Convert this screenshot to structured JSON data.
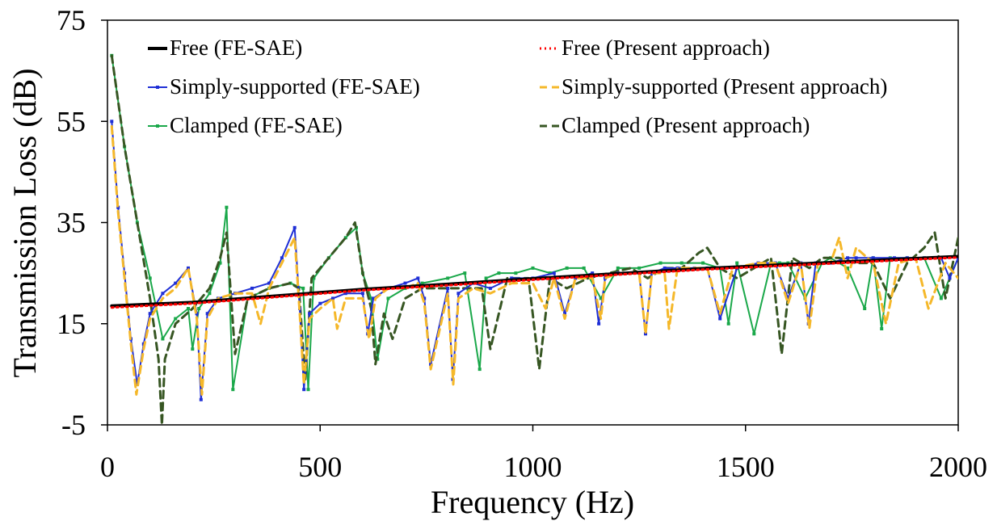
{
  "chart_data": {
    "type": "line",
    "title": "",
    "xlabel": "Frequency (Hz)",
    "ylabel": "Transmission Loss (dB)",
    "xlim": [
      0,
      2000
    ],
    "ylim": [
      -5,
      75
    ],
    "xticks": [
      0,
      500,
      1000,
      1500,
      2000
    ],
    "yticks": [
      -5,
      15,
      35,
      55,
      75
    ],
    "xtick_labels": [
      "0",
      "500",
      "1000",
      "1500",
      "2000"
    ],
    "ytick_labels": [
      "-5",
      "15",
      "35",
      "55",
      "75"
    ],
    "grid": false,
    "legend_position": "top",
    "series": [
      {
        "name": "Free (FE-SAE)",
        "color": "#000000",
        "style": "solid-thick",
        "x": [
          10,
          200,
          400,
          600,
          800,
          1000,
          1200,
          1400,
          1600,
          1800,
          2000
        ],
        "y": [
          18.5,
          19.2,
          20.5,
          21.8,
          22.8,
          23.9,
          24.9,
          25.9,
          26.7,
          27.5,
          28.3
        ]
      },
      {
        "name": "Free (Present approach)",
        "color": "#ff0000",
        "style": "dotted",
        "x": [
          10,
          200,
          400,
          600,
          800,
          1000,
          1200,
          1400,
          1600,
          1800,
          2000
        ],
        "y": [
          18.2,
          19.0,
          20.3,
          21.6,
          22.6,
          23.7,
          24.7,
          25.7,
          26.5,
          27.3,
          28.1
        ]
      },
      {
        "name": "Simply-supported (FE-SAE)",
        "color": "#1f2fd6",
        "style": "solid-marker",
        "x": [
          10,
          25,
          40,
          55,
          70,
          85,
          100,
          130,
          160,
          190,
          210,
          220,
          235,
          260,
          300,
          340,
          380,
          410,
          440,
          452,
          462,
          475,
          500,
          530,
          560,
          600,
          612,
          625,
          660,
          700,
          730,
          745,
          760,
          800,
          812,
          825,
          860,
          900,
          950,
          1000,
          1050,
          1075,
          1100,
          1140,
          1155,
          1170,
          1200,
          1250,
          1265,
          1280,
          1310,
          1340,
          1380,
          1410,
          1440,
          1480,
          1530,
          1570,
          1600,
          1630,
          1648,
          1665,
          1700,
          1740,
          1760,
          1800,
          1850,
          1880,
          1920,
          1960,
          1980,
          2000
        ],
        "y": [
          55,
          38,
          25,
          12,
          3,
          11,
          17,
          21,
          23,
          26,
          17,
          0,
          17,
          20,
          21,
          22,
          23,
          28,
          34,
          18,
          2,
          17,
          19,
          20,
          21,
          21,
          13,
          20,
          22,
          23,
          24,
          20,
          7,
          22,
          4,
          21,
          23,
          22,
          24,
          24,
          25,
          17,
          24,
          25,
          15,
          24,
          25,
          25,
          13,
          25,
          26,
          26,
          26,
          26,
          16,
          26,
          27,
          27,
          20,
          27,
          15,
          27,
          27,
          28,
          28,
          28,
          28,
          28,
          28,
          28,
          24,
          28
        ]
      },
      {
        "name": "Simply-supported (Present approach)",
        "color": "#f5b82a",
        "style": "dashed",
        "x": [
          10,
          25,
          40,
          55,
          68,
          85,
          100,
          130,
          160,
          190,
          210,
          222,
          235,
          260,
          300,
          340,
          360,
          380,
          410,
          440,
          452,
          462,
          475,
          500,
          530,
          540,
          560,
          600,
          615,
          630,
          660,
          700,
          730,
          745,
          760,
          800,
          813,
          825,
          860,
          900,
          950,
          1000,
          1030,
          1050,
          1075,
          1100,
          1140,
          1160,
          1170,
          1200,
          1250,
          1265,
          1280,
          1310,
          1320,
          1340,
          1380,
          1410,
          1440,
          1470,
          1530,
          1570,
          1600,
          1630,
          1650,
          1670,
          1700,
          1720,
          1740,
          1760,
          1800,
          1830,
          1860,
          1900,
          1930,
          1970,
          2000
        ],
        "y": [
          54,
          37,
          24,
          11,
          1,
          10,
          16,
          20,
          22,
          26,
          16,
          1,
          16,
          20,
          21,
          21,
          15,
          22,
          27,
          32,
          17,
          3,
          16,
          18,
          20,
          14,
          20,
          20,
          12,
          20,
          22,
          22,
          23,
          19,
          6,
          21,
          3,
          20,
          22,
          21,
          23,
          23,
          18,
          24,
          16,
          24,
          24,
          16,
          24,
          25,
          25,
          13,
          25,
          25,
          14,
          26,
          26,
          26,
          17,
          26,
          27,
          27,
          19,
          27,
          14,
          27,
          27,
          32,
          24,
          30,
          27,
          15,
          27,
          28,
          18,
          27,
          24
        ]
      },
      {
        "name": "Clamped (FE-SAE)",
        "color": "#1aa84a",
        "style": "solid-marker",
        "x": [
          10,
          40,
          70,
          100,
          130,
          160,
          190,
          200,
          215,
          240,
          265,
          280,
          295,
          330,
          380,
          430,
          460,
          472,
          485,
          520,
          560,
          585,
          600,
          620,
          635,
          660,
          700,
          740,
          800,
          840,
          875,
          890,
          920,
          960,
          1000,
          1040,
          1080,
          1120,
          1160,
          1200,
          1250,
          1300,
          1350,
          1400,
          1440,
          1460,
          1480,
          1520,
          1560,
          1580,
          1600,
          1640,
          1680,
          1700,
          1740,
          1780,
          1800,
          1820,
          1840,
          1880,
          1920,
          1960,
          2000
        ],
        "y": [
          68,
          50,
          35,
          24,
          12,
          16,
          18,
          10,
          18,
          21,
          27,
          38,
          2,
          20,
          22,
          23,
          22,
          2,
          24,
          28,
          32,
          34,
          25,
          20,
          8,
          20,
          22,
          23,
          24,
          25,
          6,
          24,
          25,
          25,
          26,
          25,
          26,
          26,
          20,
          26,
          26,
          27,
          27,
          27,
          26,
          15,
          27,
          13,
          27,
          27,
          27,
          20,
          27,
          28,
          26,
          18,
          28,
          14,
          28,
          28,
          28,
          20,
          28
        ]
      },
      {
        "name": "Clamped (Present approach)",
        "color": "#375623",
        "style": "dashed",
        "x": [
          10,
          40,
          70,
          100,
          120,
          128,
          135,
          160,
          200,
          240,
          265,
          280,
          300,
          330,
          380,
          430,
          450,
          465,
          480,
          520,
          560,
          582,
          600,
          620,
          630,
          650,
          670,
          700,
          740,
          790,
          830,
          880,
          900,
          940,
          990,
          1015,
          1040,
          1080,
          1130,
          1180,
          1230,
          1270,
          1310,
          1350,
          1390,
          1410,
          1440,
          1480,
          1520,
          1560,
          1585,
          1610,
          1650,
          1680,
          1720,
          1760,
          1800,
          1840,
          1880,
          1920,
          1945,
          1970,
          2000
        ],
        "y": [
          68,
          50,
          35,
          20,
          8,
          -5,
          8,
          15,
          18,
          22,
          28,
          33,
          9,
          20,
          22,
          23,
          22,
          4,
          24,
          28,
          32,
          35,
          25,
          18,
          7,
          17,
          12,
          20,
          22,
          22,
          22,
          22,
          10,
          24,
          24,
          6,
          24,
          22,
          24,
          25,
          26,
          24,
          26,
          26,
          29,
          30,
          26,
          24,
          26,
          28,
          9,
          28,
          26,
          28,
          28,
          27,
          27,
          20,
          27,
          30,
          33,
          20,
          32
        ]
      }
    ]
  }
}
